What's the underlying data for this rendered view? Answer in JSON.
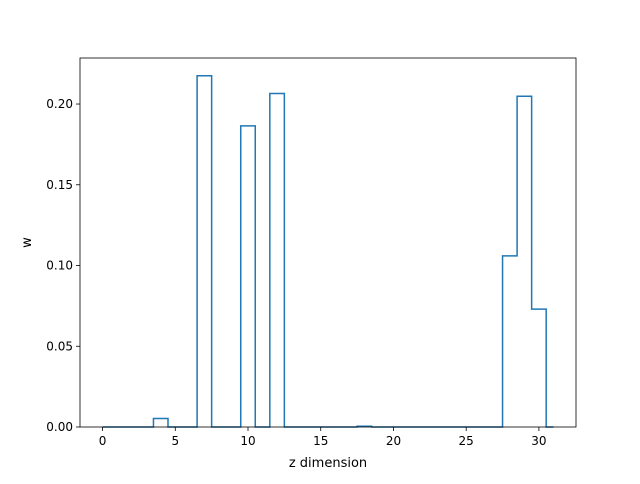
{
  "chart_data": {
    "type": "step",
    "title": "",
    "xlabel": "z dimension",
    "ylabel": "w",
    "xlim": [
      -1.55,
      32.55
    ],
    "ylim": [
      0.0,
      0.2285
    ],
    "x_ticks": [
      0,
      5,
      10,
      15,
      20,
      25,
      30
    ],
    "x_tick_labels": [
      "0",
      "5",
      "10",
      "15",
      "20",
      "25",
      "30"
    ],
    "y_ticks": [
      0.0,
      0.05,
      0.1,
      0.15,
      0.2
    ],
    "y_tick_labels": [
      "0.00",
      "0.05",
      "0.10",
      "0.15",
      "0.20"
    ],
    "grid": false,
    "color": "#1f77b4",
    "series": [
      {
        "x": [
          0,
          1,
          2,
          3,
          4,
          5,
          6,
          7,
          8,
          9,
          10,
          11,
          12,
          13,
          14,
          15,
          16,
          17,
          18,
          19,
          20,
          21,
          22,
          23,
          24,
          25,
          26,
          27,
          28,
          29,
          30,
          31
        ],
        "values": [
          0.0,
          0.0,
          0.0,
          0.0,
          0.0053,
          0.0,
          0.0,
          0.2175,
          0.0,
          0.0,
          0.1865,
          0.0,
          0.2065,
          0.0,
          0.0,
          0.0,
          0.0,
          0.0,
          0.0005,
          0.0,
          0.0,
          0.0,
          0.0,
          0.0,
          0.0,
          0.0,
          0.0,
          0.0,
          0.106,
          0.2048,
          0.073,
          0.0
        ]
      }
    ]
  }
}
